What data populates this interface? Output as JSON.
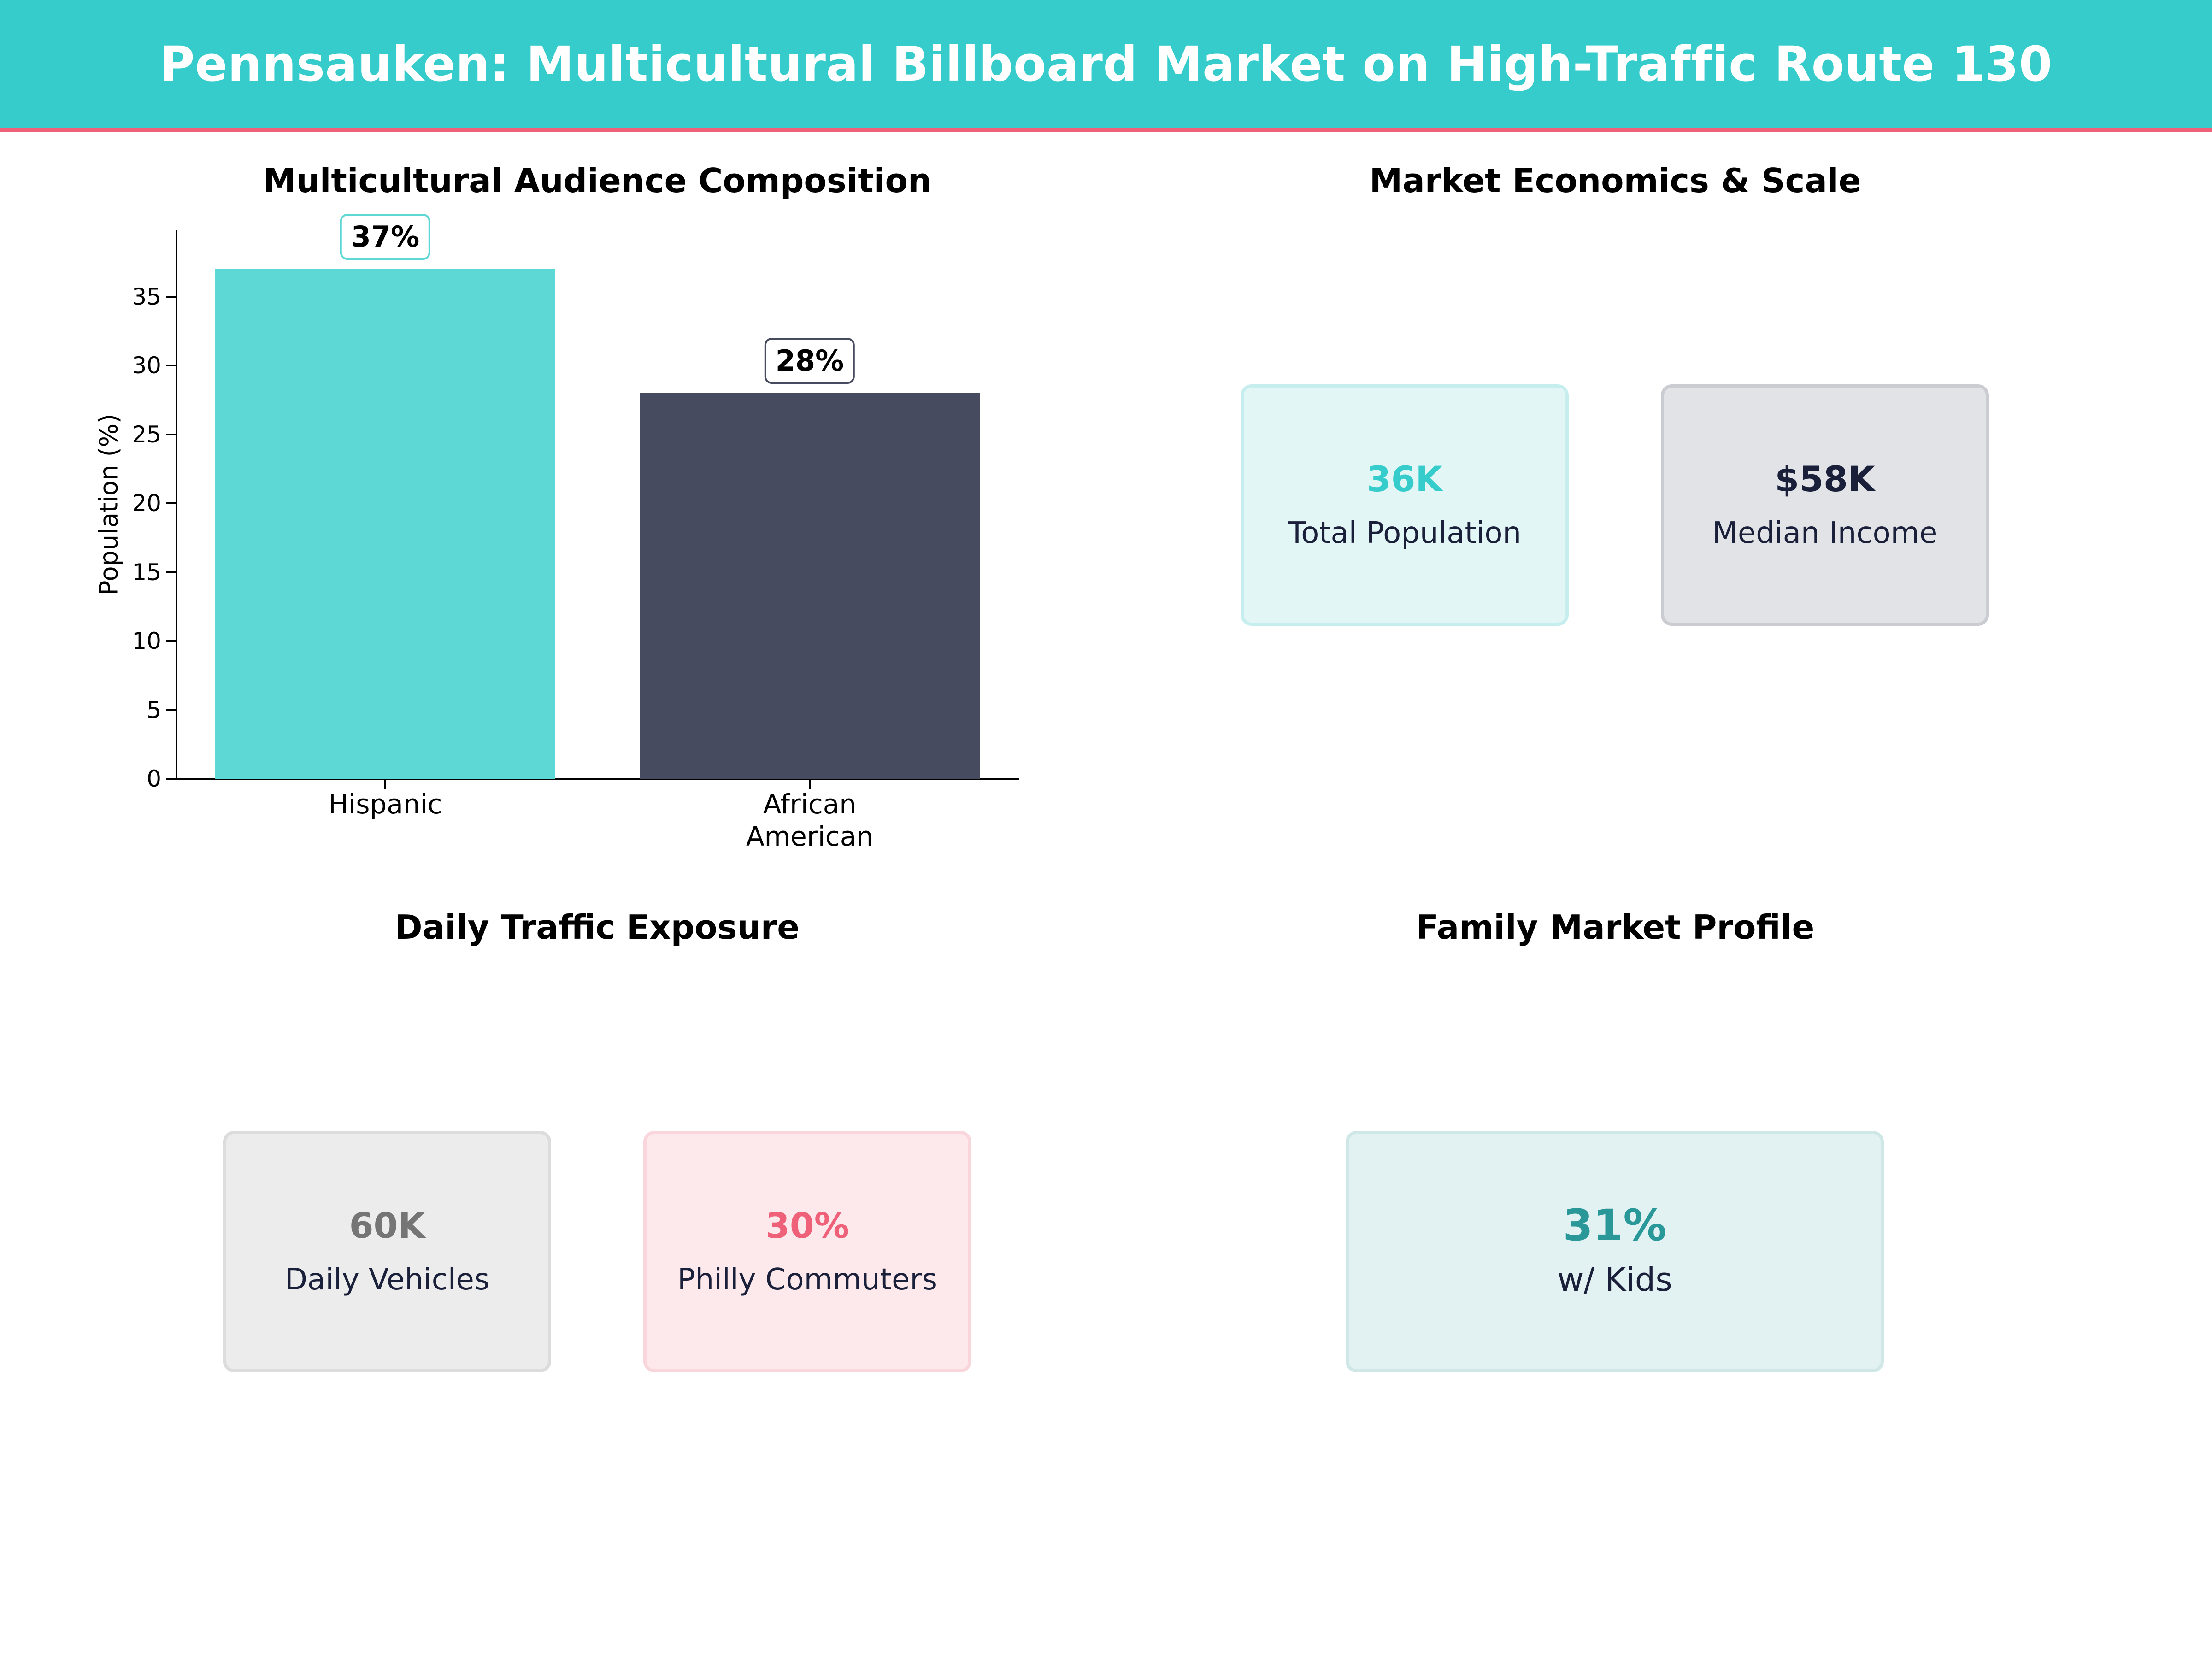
{
  "header": {
    "title": "Pennsauken: Multicultural Billboard Market on High-Traffic Route 130",
    "bg_color": "#36cccc",
    "accent_line_color": "#ef6079"
  },
  "panels": {
    "audience": {
      "title": "Multicultural Audience Composition"
    },
    "economics": {
      "title": "Market Economics & Scale",
      "cards": [
        {
          "value": "36K",
          "label": "Total Population",
          "value_color": "#36cccc",
          "bg": "#e3f6f6",
          "border": "#c6eeee"
        },
        {
          "value": "$58K",
          "label": "Median Income",
          "value_color": "#1a1f3a",
          "bg": "#e2e3e7",
          "border": "#cbccd2"
        }
      ]
    },
    "traffic": {
      "title": "Daily Traffic Exposure",
      "cards": [
        {
          "value": "60K",
          "label": "Daily Vehicles",
          "value_color": "#757575",
          "bg": "#ececec",
          "border": "#dcdcdc"
        },
        {
          "value": "30%",
          "label": "Philly Commuters",
          "value_color": "#ef6079",
          "bg": "#fde9ec",
          "border": "#f9d6dc"
        }
      ]
    },
    "family": {
      "title": "Family Market Profile",
      "cards": [
        {
          "value": "31%",
          "label": "w/ Kids",
          "value_color": "#2a9898",
          "bg": "#e2f2f2",
          "border": "#cfe7e7"
        }
      ]
    }
  },
  "chart_data": {
    "type": "bar",
    "title": "Multicultural Audience Composition",
    "categories": [
      "Hispanic",
      "African\nAmerican"
    ],
    "values": [
      37,
      28
    ],
    "value_labels": [
      "37%",
      "28%"
    ],
    "colors": [
      "#5dd8d4",
      "#464b60"
    ],
    "xlabel": "",
    "ylabel": "Population (%)",
    "yticks": [
      0,
      5,
      10,
      15,
      20,
      25,
      30,
      35
    ],
    "ylim": [
      0,
      39
    ],
    "grid": false,
    "legend": null
  }
}
